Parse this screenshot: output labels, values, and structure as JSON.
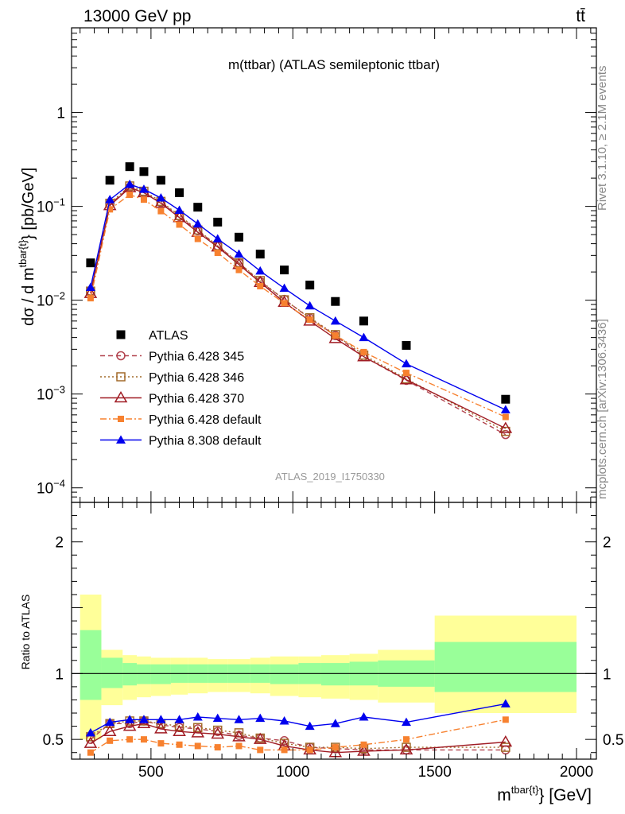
{
  "header": {
    "left": "13000 GeV pp",
    "right": "tt̄"
  },
  "side_labels": {
    "rivet": "Rivet 3.1.10, ≥ 2.1M events",
    "mcplots": "mcplots.cern.ch [arXiv:1306.3436]"
  },
  "chart_data": [
    {
      "type": "scatter",
      "title": "m(ttbar) (ATLAS semileptonic ttbar)",
      "watermark": "ATLAS_2019_I1750330",
      "ylabel": "dσ / d m^{tbar{t}} [pb/GeV]",
      "yscale": "log",
      "ylim": [
        7e-05,
        8
      ],
      "xlim": [
        220,
        2070
      ],
      "xticks": [
        500,
        1000,
        1500,
        2000
      ],
      "yticks": [
        {
          "value": 0.0001,
          "base": "10",
          "exp": "−4"
        },
        {
          "value": 0.001,
          "base": "10",
          "exp": "−3"
        },
        {
          "value": 0.01,
          "base": "10",
          "exp": "−2"
        },
        {
          "value": 0.1,
          "base": "10",
          "exp": "−1"
        },
        {
          "value": 1,
          "base": "1",
          "exp": ""
        }
      ],
      "legend_position": "lower-left",
      "x": [
        287,
        355,
        425,
        475,
        535,
        600,
        665,
        735,
        810,
        885,
        970,
        1060,
        1150,
        1250,
        1400,
        1750
      ],
      "series": [
        {
          "name": "ATLAS",
          "color": "#000000",
          "marker": "square-filled",
          "line": "none",
          "values": [
            0.025,
            0.19,
            0.265,
            0.235,
            0.19,
            0.14,
            0.098,
            0.068,
            0.047,
            0.031,
            0.021,
            0.0145,
            0.0097,
            0.006,
            0.0033,
            0.00088
          ]
        },
        {
          "name": "Pythia 6.428 345",
          "color": "#b2444f",
          "marker": "circle-open",
          "line": "dashed",
          "values": [
            0.0125,
            0.105,
            0.16,
            0.14,
            0.11,
            0.078,
            0.055,
            0.038,
            0.025,
            0.0158,
            0.0102,
            0.0064,
            0.0042,
            0.0025,
            0.0014,
            0.00037
          ]
        },
        {
          "name": "Pythia 6.428 346",
          "color": "#a26a2a",
          "marker": "square-open",
          "line": "dotted",
          "values": [
            0.0125,
            0.108,
            0.165,
            0.145,
            0.113,
            0.08,
            0.056,
            0.038,
            0.025,
            0.0162,
            0.0101,
            0.0065,
            0.0043,
            0.0026,
            0.00145,
            0.0004
          ]
        },
        {
          "name": "Pythia 6.428 370",
          "color": "#a01c24",
          "marker": "triangle-open",
          "line": "solid",
          "values": [
            0.0118,
            0.102,
            0.158,
            0.14,
            0.108,
            0.076,
            0.053,
            0.037,
            0.024,
            0.0155,
            0.0095,
            0.006,
            0.0039,
            0.0025,
            0.00142,
            0.00043
          ]
        },
        {
          "name": "Pythia 6.428 default",
          "color": "#f7812f",
          "marker": "square-filled-small",
          "line": "dashdot",
          "values": [
            0.0105,
            0.093,
            0.133,
            0.118,
            0.089,
            0.064,
            0.045,
            0.032,
            0.021,
            0.0141,
            0.0093,
            0.0062,
            0.0042,
            0.0028,
            0.00168,
            0.00057
          ]
        },
        {
          "name": "Pythia 8.308 default",
          "color": "#0000ee",
          "marker": "triangle-filled",
          "line": "solid",
          "values": [
            0.0137,
            0.118,
            0.172,
            0.152,
            0.123,
            0.091,
            0.065,
            0.045,
            0.031,
            0.0205,
            0.0134,
            0.0087,
            0.006,
            0.004,
            0.0021,
            0.00068
          ]
        }
      ]
    },
    {
      "type": "line",
      "ylabel": "Ratio to ATLAS",
      "xlabel": "m^{tbar{t}} [GeV]",
      "xlim": [
        220,
        2070
      ],
      "ylim": [
        0.35,
        2.3
      ],
      "xticks": [
        500,
        1000,
        1500,
        2000
      ],
      "yticks": [
        0.5,
        1,
        2
      ],
      "reference_line": 1,
      "band_bins": [
        {
          "lo": 250,
          "hi": 325,
          "outer": [
            0.5,
            1.6
          ],
          "inner": [
            0.8,
            1.33
          ]
        },
        {
          "lo": 325,
          "hi": 400,
          "outer": [
            0.76,
            1.18
          ],
          "inner": [
            0.89,
            1.12
          ]
        },
        {
          "lo": 400,
          "hi": 450,
          "outer": [
            0.8,
            1.14
          ],
          "inner": [
            0.91,
            1.08
          ]
        },
        {
          "lo": 450,
          "hi": 500,
          "outer": [
            0.82,
            1.13
          ],
          "inner": [
            0.92,
            1.07
          ]
        },
        {
          "lo": 500,
          "hi": 570,
          "outer": [
            0.83,
            1.12
          ],
          "inner": [
            0.92,
            1.07
          ]
        },
        {
          "lo": 570,
          "hi": 630,
          "outer": [
            0.84,
            1.12
          ],
          "inner": [
            0.93,
            1.07
          ]
        },
        {
          "lo": 630,
          "hi": 700,
          "outer": [
            0.85,
            1.12
          ],
          "inner": [
            0.93,
            1.07
          ]
        },
        {
          "lo": 700,
          "hi": 770,
          "outer": [
            0.86,
            1.11
          ],
          "inner": [
            0.93,
            1.07
          ]
        },
        {
          "lo": 770,
          "hi": 850,
          "outer": [
            0.86,
            1.11
          ],
          "inner": [
            0.93,
            1.07
          ]
        },
        {
          "lo": 850,
          "hi": 920,
          "outer": [
            0.85,
            1.12
          ],
          "inner": [
            0.93,
            1.07
          ]
        },
        {
          "lo": 920,
          "hi": 1020,
          "outer": [
            0.83,
            1.13
          ],
          "inner": [
            0.92,
            1.07
          ]
        },
        {
          "lo": 1020,
          "hi": 1100,
          "outer": [
            0.82,
            1.13
          ],
          "inner": [
            0.92,
            1.08
          ]
        },
        {
          "lo": 1100,
          "hi": 1200,
          "outer": [
            0.81,
            1.14
          ],
          "inner": [
            0.91,
            1.08
          ]
        },
        {
          "lo": 1200,
          "hi": 1300,
          "outer": [
            0.8,
            1.15
          ],
          "inner": [
            0.91,
            1.09
          ]
        },
        {
          "lo": 1300,
          "hi": 1500,
          "outer": [
            0.78,
            1.18
          ],
          "inner": [
            0.9,
            1.1
          ]
        },
        {
          "lo": 1500,
          "hi": 2000,
          "outer": [
            0.7,
            1.44
          ],
          "inner": [
            0.86,
            1.24
          ]
        }
      ],
      "band_colors": {
        "outer": "#ffff99",
        "inner": "#99ff99"
      },
      "x": [
        287,
        355,
        425,
        475,
        535,
        600,
        665,
        735,
        810,
        885,
        970,
        1060,
        1150,
        1250,
        1400,
        1750
      ],
      "series": [
        {
          "name": "Pythia 6.428 345",
          "color": "#b2444f",
          "marker": "circle-open",
          "line": "dashed",
          "values": [
            0.5,
            0.62,
            0.62,
            0.64,
            0.61,
            0.59,
            0.58,
            0.56,
            0.53,
            0.51,
            0.49,
            0.44,
            0.43,
            0.42,
            0.42,
            0.42
          ]
        },
        {
          "name": "Pythia 6.428 346",
          "color": "#a26a2a",
          "marker": "square-open",
          "line": "dotted",
          "values": [
            0.52,
            0.62,
            0.64,
            0.64,
            0.62,
            0.6,
            0.59,
            0.57,
            0.55,
            0.51,
            0.47,
            0.44,
            0.44,
            0.43,
            0.44,
            0.44
          ]
        },
        {
          "name": "Pythia 6.428 370",
          "color": "#a01c24",
          "marker": "triangle-open",
          "line": "solid",
          "values": [
            0.47,
            0.56,
            0.6,
            0.62,
            0.58,
            0.56,
            0.55,
            0.54,
            0.52,
            0.5,
            0.45,
            0.42,
            0.4,
            0.41,
            0.42,
            0.48
          ]
        },
        {
          "name": "Pythia 6.428 default",
          "color": "#f7812f",
          "marker": "square-filled-small",
          "line": "dashdot",
          "values": [
            0.4,
            0.49,
            0.5,
            0.5,
            0.47,
            0.46,
            0.45,
            0.44,
            0.45,
            0.42,
            0.42,
            0.42,
            0.44,
            0.46,
            0.5,
            0.65
          ]
        },
        {
          "name": "Pythia 8.308 default",
          "color": "#0000ee",
          "marker": "triangle-filled",
          "line": "solid",
          "values": [
            0.55,
            0.63,
            0.65,
            0.65,
            0.65,
            0.65,
            0.67,
            0.66,
            0.65,
            0.66,
            0.64,
            0.6,
            0.62,
            0.67,
            0.63,
            0.77
          ]
        }
      ]
    }
  ]
}
